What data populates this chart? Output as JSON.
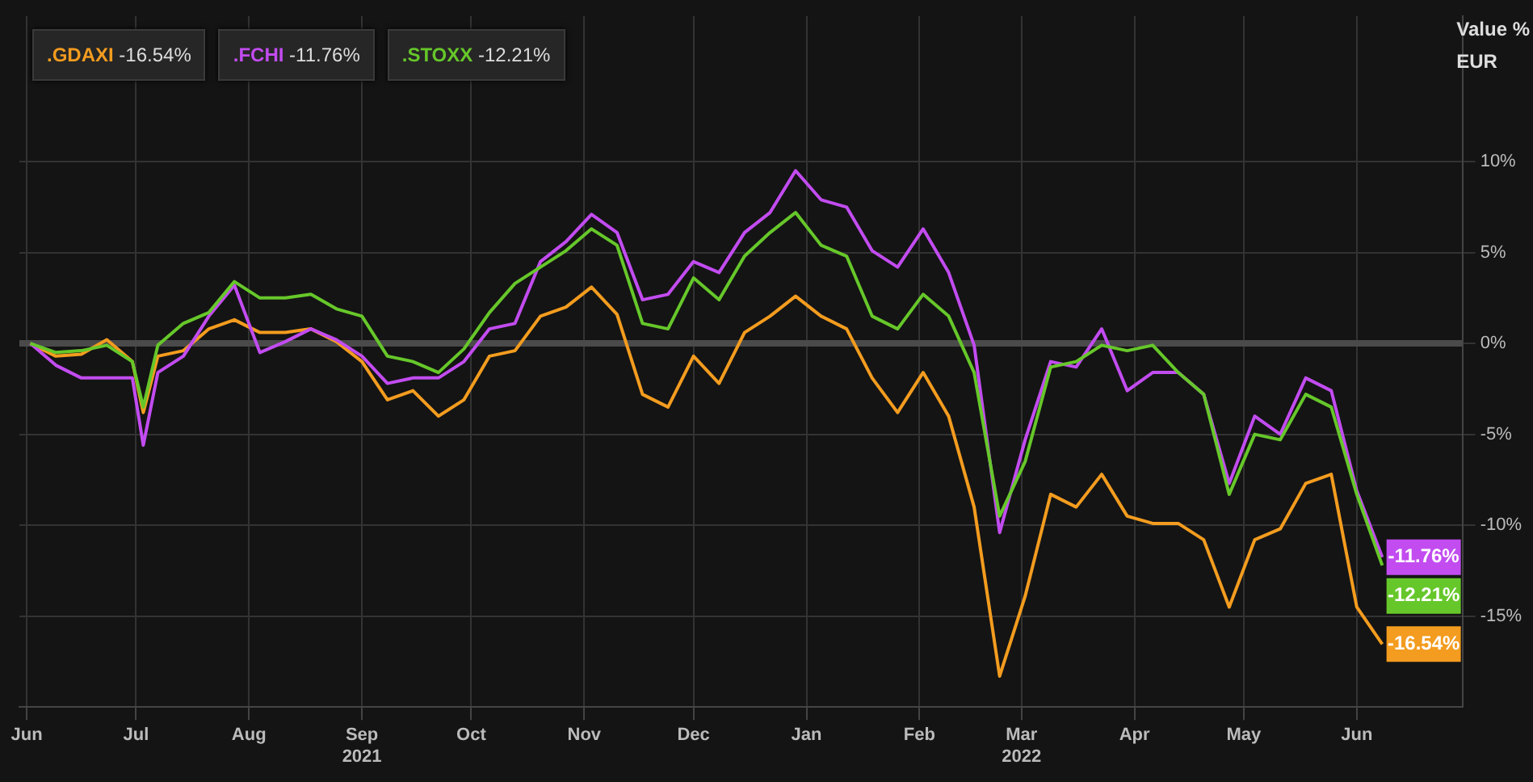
{
  "chart_data": {
    "type": "line",
    "ylabel": "Value %",
    "annotations": [
      "EUR"
    ],
    "x": [
      "2021-06-02",
      "2021-06-09",
      "2021-06-16",
      "2021-06-23",
      "2021-06-30",
      "2021-07-03",
      "2021-07-07",
      "2021-07-14",
      "2021-07-21",
      "2021-07-28",
      "2021-08-04",
      "2021-08-11",
      "2021-08-18",
      "2021-08-25",
      "2021-09-01",
      "2021-09-08",
      "2021-09-15",
      "2021-09-22",
      "2021-09-29",
      "2021-10-06",
      "2021-10-13",
      "2021-10-20",
      "2021-10-27",
      "2021-11-03",
      "2021-11-10",
      "2021-11-17",
      "2021-11-24",
      "2021-12-01",
      "2021-12-08",
      "2021-12-15",
      "2021-12-22",
      "2021-12-29",
      "2022-01-05",
      "2022-01-12",
      "2022-01-19",
      "2022-01-26",
      "2022-02-02",
      "2022-02-09",
      "2022-02-16",
      "2022-02-23",
      "2022-03-02",
      "2022-03-09",
      "2022-03-16",
      "2022-03-23",
      "2022-03-30",
      "2022-04-06",
      "2022-04-13",
      "2022-04-20",
      "2022-04-27",
      "2022-05-04",
      "2022-05-11",
      "2022-05-18",
      "2022-05-25",
      "2022-06-01",
      "2022-06-08"
    ],
    "series": [
      {
        "name": ".GDAXI",
        "color": "#f39c1f",
        "values": [
          0,
          -0.7,
          -0.6,
          0.2,
          -1.0,
          -3.8,
          -0.7,
          -0.4,
          0.8,
          1.3,
          0.6,
          0.6,
          0.8,
          0.1,
          -1.0,
          -3.1,
          -2.6,
          -4.0,
          -3.1,
          -0.7,
          -0.4,
          1.5,
          2.0,
          3.1,
          1.6,
          -2.8,
          -3.5,
          -0.7,
          -2.2,
          0.6,
          1.5,
          2.6,
          1.5,
          0.8,
          -1.9,
          -3.8,
          -1.6,
          -4.0,
          -9.0,
          -18.3,
          -13.9,
          -8.3,
          -9.0,
          -7.2,
          -9.5,
          -9.9,
          -9.9,
          -10.8,
          -14.5,
          -10.8,
          -10.2,
          -7.7,
          -7.2,
          -14.5,
          -16.54
        ],
        "value_labels": [
          null,
          null,
          null,
          null,
          null,
          null,
          null,
          null,
          null,
          null,
          null,
          null,
          null,
          null,
          null,
          null,
          null,
          null,
          null,
          null,
          null,
          null,
          null,
          null,
          null,
          null,
          null,
          null,
          null,
          null,
          null,
          null,
          null,
          null,
          null,
          null,
          null,
          null,
          null,
          null,
          null,
          null,
          null,
          null,
          null,
          null,
          null,
          null,
          null,
          null,
          null,
          null,
          null,
          null,
          "-16.54%"
        ]
      },
      {
        "name": ".FCHI",
        "color": "#c24cf0",
        "values": [
          0,
          -1.2,
          -1.9,
          -1.9,
          -1.9,
          -5.6,
          -1.6,
          -0.7,
          1.5,
          3.2,
          -0.5,
          0.1,
          0.8,
          0.2,
          -0.7,
          -2.2,
          -1.9,
          -1.9,
          -1.0,
          0.8,
          1.1,
          4.5,
          5.6,
          7.1,
          6.1,
          2.4,
          2.7,
          4.5,
          3.9,
          6.1,
          7.2,
          9.5,
          7.9,
          7.5,
          5.1,
          4.2,
          6.3,
          3.9,
          -0.1,
          -10.4,
          -5.3,
          -1.0,
          -1.3,
          0.8,
          -2.6,
          -1.6,
          -1.6,
          -2.8,
          -7.7,
          -4.0,
          -5.0,
          -1.9,
          -2.6,
          -8.1,
          -11.76
        ],
        "value_labels": [
          null,
          null,
          null,
          null,
          null,
          null,
          null,
          null,
          null,
          null,
          null,
          null,
          null,
          null,
          null,
          null,
          null,
          null,
          null,
          null,
          null,
          null,
          null,
          null,
          null,
          null,
          null,
          null,
          null,
          null,
          null,
          null,
          null,
          null,
          null,
          null,
          null,
          null,
          null,
          null,
          null,
          null,
          null,
          null,
          null,
          null,
          null,
          null,
          null,
          null,
          null,
          null,
          null,
          null,
          "-11.76%"
        ]
      },
      {
        "name": ".STOXX",
        "color": "#66c72a",
        "values": [
          0,
          -0.5,
          -0.4,
          -0.1,
          -1.0,
          -3.5,
          -0.1,
          1.1,
          1.7,
          3.4,
          2.5,
          2.5,
          2.7,
          1.9,
          1.5,
          -0.7,
          -1.0,
          -1.6,
          -0.3,
          1.7,
          3.3,
          4.2,
          5.1,
          6.3,
          5.4,
          1.1,
          0.8,
          3.6,
          2.4,
          4.8,
          6.1,
          7.2,
          5.4,
          4.8,
          1.5,
          0.8,
          2.7,
          1.5,
          -1.6,
          -9.5,
          -6.5,
          -1.3,
          -1.0,
          -0.1,
          -0.4,
          -0.1,
          -1.6,
          -2.8,
          -8.3,
          -5.0,
          -5.3,
          -2.8,
          -3.5,
          -8.3,
          -12.21
        ],
        "value_labels": [
          null,
          null,
          null,
          null,
          null,
          null,
          null,
          null,
          null,
          null,
          null,
          null,
          null,
          null,
          null,
          null,
          null,
          null,
          null,
          null,
          null,
          null,
          null,
          null,
          null,
          null,
          null,
          null,
          null,
          null,
          null,
          null,
          null,
          null,
          null,
          null,
          null,
          null,
          null,
          null,
          null,
          null,
          null,
          null,
          null,
          null,
          null,
          null,
          null,
          null,
          null,
          null,
          null,
          null,
          "-12.21%"
        ]
      }
    ],
    "xlim": [
      "2021-05-30",
      "2022-06-30"
    ],
    "xticks": [
      {
        "value": "2021-06-01",
        "label": "Jun"
      },
      {
        "value": "2021-07-01",
        "label": "Jul"
      },
      {
        "value": "2021-08-01",
        "label": "Aug"
      },
      {
        "value": "2021-09-01",
        "label": "Sep\n2021"
      },
      {
        "value": "2021-10-01",
        "label": "Oct"
      },
      {
        "value": "2021-11-01",
        "label": "Nov"
      },
      {
        "value": "2021-12-01",
        "label": "Dec"
      },
      {
        "value": "2022-01-01",
        "label": "Jan"
      },
      {
        "value": "2022-02-01",
        "label": "Feb"
      },
      {
        "value": "2022-03-01",
        "label": "Mar\n2022"
      },
      {
        "value": "2022-04-01",
        "label": "Apr"
      },
      {
        "value": "2022-05-01",
        "label": "May"
      },
      {
        "value": "2022-06-01",
        "label": "Jun"
      }
    ],
    "ylim": [
      -20,
      18
    ],
    "yticks": [
      {
        "value": -15,
        "label": "-15%"
      },
      {
        "value": -10,
        "label": "-10%"
      },
      {
        "value": -5,
        "label": "-5%"
      },
      {
        "value": 0,
        "label": "0%"
      },
      {
        "value": 5,
        "label": "5%"
      },
      {
        "value": 10,
        "label": "10%"
      }
    ],
    "ref_lines": [
      {
        "axis": "y",
        "value": 0,
        "color": "#4a4a4a"
      }
    ],
    "grid": true,
    "legend": "top left",
    "marker": "none",
    "line_style": "solid"
  }
}
